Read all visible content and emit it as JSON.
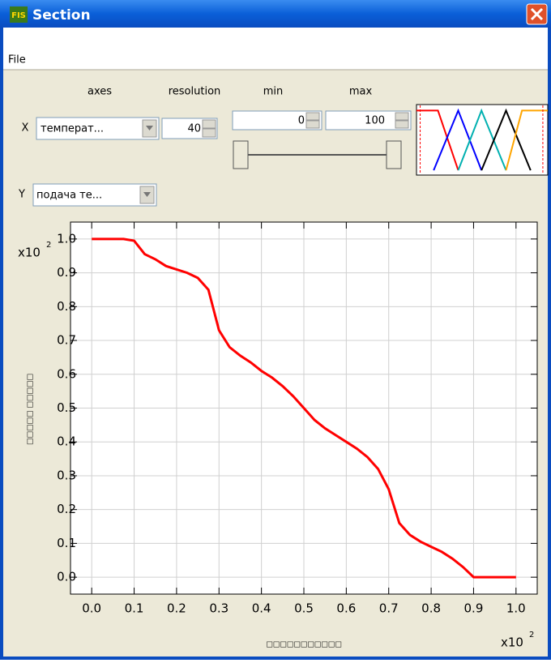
{
  "window": {
    "title": "Section",
    "icon": "FIS"
  },
  "menu": [
    "File"
  ],
  "controls": {
    "axes_label": "axes",
    "resolution_label": "resolution",
    "min_label": "min",
    "max_label": "max",
    "x_label": "X",
    "y_label": "Y",
    "x_input": "температ...",
    "y_output": "подача те...",
    "resolution": 40,
    "min": 0,
    "max": 100
  },
  "chart_data": [
    {
      "type": "line",
      "x": [
        0,
        0.025,
        0.05,
        0.075,
        0.1,
        0.125,
        0.15,
        0.175,
        0.2,
        0.225,
        0.25,
        0.275,
        0.3,
        0.325,
        0.35,
        0.375,
        0.4,
        0.425,
        0.45,
        0.475,
        0.5,
        0.525,
        0.55,
        0.575,
        0.6,
        0.625,
        0.65,
        0.675,
        0.7,
        0.725,
        0.75,
        0.775,
        0.8,
        0.825,
        0.85,
        0.875,
        0.9,
        0.925,
        0.95,
        0.975,
        1
      ],
      "values": [
        1,
        1,
        1,
        1,
        0.995,
        0.955,
        0.94,
        0.92,
        0.91,
        0.9,
        0.885,
        0.85,
        0.73,
        0.68,
        0.655,
        0.635,
        0.61,
        0.59,
        0.565,
        0.535,
        0.5,
        0.465,
        0.44,
        0.42,
        0.4,
        0.38,
        0.355,
        0.32,
        0.26,
        0.16,
        0.125,
        0.105,
        0.09,
        0.075,
        0.055,
        0.03,
        0,
        0,
        0,
        0,
        0
      ],
      "color": "#ff0000",
      "xlabel": "□□□□□□□□□□□",
      "ylabel": "□□□□□ □□□□□",
      "x_multiplier": "x10",
      "x_multiplier_exp": "2",
      "y_multiplier": "x10",
      "y_multiplier_exp": "2",
      "xlim": [
        -0.05,
        1.05
      ],
      "ylim": [
        -0.05,
        1.05
      ],
      "xticks": [
        {
          "value": 0,
          "label": "0.0"
        },
        0.1,
        0.2,
        0.3,
        0.4,
        0.5,
        0.6,
        0.7,
        0.8,
        0.9,
        {
          "value": 1,
          "label": "1.0"
        }
      ],
      "yticks": [
        {
          "value": 0,
          "label": "0.0"
        },
        0.1,
        0.2,
        0.3,
        0.4,
        0.5,
        0.6,
        0.7,
        0.8,
        0.9,
        {
          "value": 1,
          "label": "1.0"
        }
      ],
      "grid": true
    },
    {
      "type": "line",
      "xlim": [
        -3,
        104
      ],
      "ylim": [
        -0.08,
        1.1
      ],
      "series": [
        {
          "color": "#ff0000",
          "x": [
            -3,
            14.5,
            31
          ],
          "values": [
            1,
            1,
            0
          ]
        },
        {
          "color": "#0000ff",
          "x": [
            11,
            31,
            50
          ],
          "values": [
            0,
            1,
            0
          ]
        },
        {
          "color": "#00b0b0",
          "x": [
            31,
            50,
            70
          ],
          "values": [
            0,
            1,
            0
          ]
        },
        {
          "color": "#000000",
          "x": [
            50,
            70,
            90
          ],
          "values": [
            0,
            1,
            0
          ]
        },
        {
          "color": "#ffa500",
          "x": [
            70,
            83,
            104
          ],
          "values": [
            0,
            1,
            1
          ]
        }
      ]
    }
  ]
}
